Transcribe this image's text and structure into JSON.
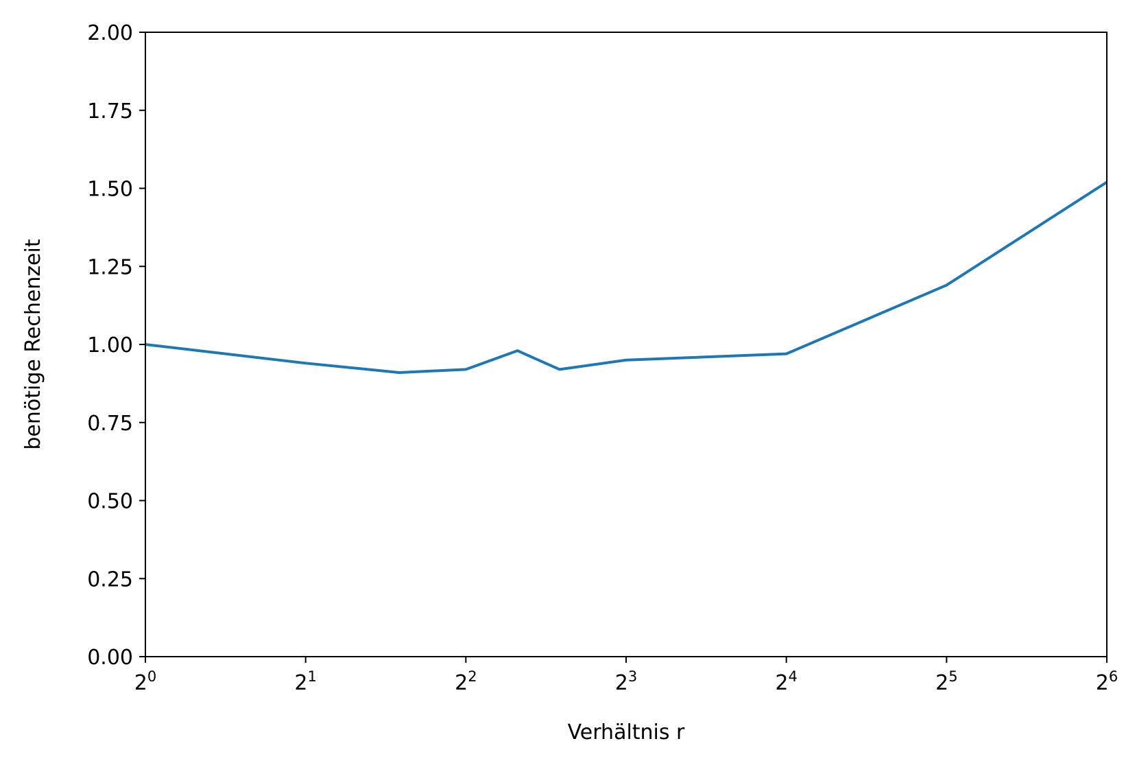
{
  "chart_data": {
    "type": "line",
    "xlabel": "Verhältnis r",
    "ylabel": "benötige Rechenzeit",
    "xscale": "log2",
    "xlim": [
      1,
      64
    ],
    "ylim": [
      0,
      2
    ],
    "grid": false,
    "legend": "none",
    "x_ticks": [
      {
        "value": 1,
        "base": "2",
        "exp": "0"
      },
      {
        "value": 2,
        "base": "2",
        "exp": "1"
      },
      {
        "value": 4,
        "base": "2",
        "exp": "2"
      },
      {
        "value": 8,
        "base": "2",
        "exp": "3"
      },
      {
        "value": 16,
        "base": "2",
        "exp": "4"
      },
      {
        "value": 32,
        "base": "2",
        "exp": "5"
      },
      {
        "value": 64,
        "base": "2",
        "exp": "6"
      }
    ],
    "y_ticks": [
      {
        "value": 0,
        "label": "0.00"
      },
      {
        "value": 0.25,
        "label": "0.25"
      },
      {
        "value": 0.5,
        "label": "0.50"
      },
      {
        "value": 0.75,
        "label": "0.75"
      },
      {
        "value": 1.0,
        "label": "1.00"
      },
      {
        "value": 1.25,
        "label": "1.25"
      },
      {
        "value": 1.5,
        "label": "1.50"
      },
      {
        "value": 1.75,
        "label": "1.75"
      },
      {
        "value": 2.0,
        "label": "2.00"
      }
    ],
    "series": [
      {
        "color": "#1f77b4",
        "x": [
          1,
          2,
          3,
          4,
          5,
          6,
          8,
          16,
          32,
          64
        ],
        "y": [
          1.0,
          0.94,
          0.91,
          0.92,
          0.98,
          0.92,
          0.95,
          0.97,
          1.19,
          1.52
        ]
      }
    ]
  }
}
